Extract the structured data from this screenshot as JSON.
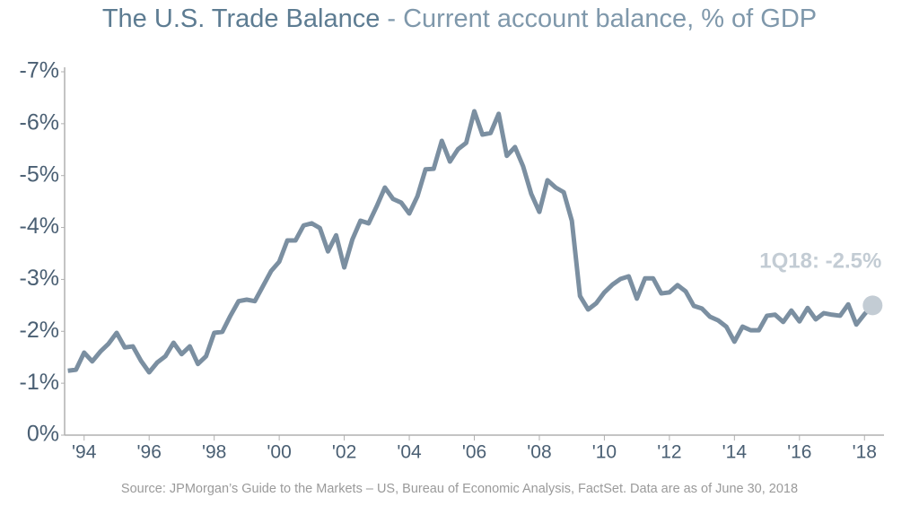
{
  "chart_data": {
    "type": "line",
    "title": "The U.S. Trade Balance",
    "subtitle": " - Current account balance, % of GDP",
    "source": "Source: JPMorgan’s Guide to the Markets – US, Bureau of Economic Analysis, FactSet. Data are as of June 30, 2018",
    "annotation": "1Q18: -2.5%",
    "color": "#7b8fa1",
    "highlight_color": "#c3ccd4",
    "x": [
      1993.5,
      1993.75,
      1994,
      1994.25,
      1994.5,
      1994.75,
      1995,
      1995.25,
      1995.5,
      1995.75,
      1996,
      1996.25,
      1996.5,
      1996.75,
      1997,
      1997.25,
      1997.5,
      1997.75,
      1998,
      1998.25,
      1998.5,
      1998.75,
      1999,
      1999.25,
      1999.5,
      1999.75,
      2000,
      2000.25,
      2000.5,
      2000.75,
      2001,
      2001.25,
      2001.5,
      2001.75,
      2002,
      2002.25,
      2002.5,
      2002.75,
      2003,
      2003.25,
      2003.5,
      2003.75,
      2004,
      2004.25,
      2004.5,
      2004.75,
      2005,
      2005.25,
      2005.5,
      2005.75,
      2006,
      2006.25,
      2006.5,
      2006.75,
      2007,
      2007.25,
      2007.5,
      2007.75,
      2008,
      2008.25,
      2008.5,
      2008.75,
      2009,
      2009.25,
      2009.5,
      2009.75,
      2010,
      2010.25,
      2010.5,
      2010.75,
      2011,
      2011.25,
      2011.5,
      2011.75,
      2012,
      2012.25,
      2012.5,
      2012.75,
      2013,
      2013.25,
      2013.5,
      2013.75,
      2014,
      2014.25,
      2014.5,
      2014.75,
      2015,
      2015.25,
      2015.5,
      2015.75,
      2016,
      2016.25,
      2016.5,
      2016.75,
      2017,
      2017.25,
      2017.5,
      2017.75,
      2018,
      2018.25
    ],
    "values": [
      -1.24,
      -1.26,
      -1.59,
      -1.42,
      -1.61,
      -1.76,
      -1.97,
      -1.69,
      -1.71,
      -1.43,
      -1.21,
      -1.4,
      -1.52,
      -1.78,
      -1.56,
      -1.71,
      -1.37,
      -1.52,
      -1.97,
      -1.99,
      -2.3,
      -2.58,
      -2.61,
      -2.58,
      -2.87,
      -3.16,
      -3.34,
      -3.75,
      -3.75,
      -4.04,
      -4.08,
      -3.99,
      -3.54,
      -3.85,
      -3.23,
      -3.77,
      -4.13,
      -4.08,
      -4.41,
      -4.77,
      -4.55,
      -4.48,
      -4.27,
      -4.6,
      -5.12,
      -5.13,
      -5.67,
      -5.27,
      -5.51,
      -5.63,
      -6.24,
      -5.79,
      -5.82,
      -6.19,
      -5.38,
      -5.55,
      -5.18,
      -4.65,
      -4.3,
      -4.91,
      -4.77,
      -4.68,
      -4.13,
      -2.68,
      -2.42,
      -2.54,
      -2.75,
      -2.9,
      -3.01,
      -3.06,
      -2.63,
      -3.02,
      -3.02,
      -2.73,
      -2.75,
      -2.89,
      -2.77,
      -2.49,
      -2.44,
      -2.28,
      -2.21,
      -2.09,
      -1.8,
      -2.09,
      -2.02,
      -2.02,
      -2.3,
      -2.32,
      -2.18,
      -2.4,
      -2.19,
      -2.45,
      -2.23,
      -2.35,
      -2.32,
      -2.3,
      -2.52,
      -2.13,
      -2.33,
      -2.5
    ],
    "xlim": [
      1993.4,
      2018.6
    ],
    "xticks": [
      {
        "value": 1994,
        "label": "'94"
      },
      {
        "value": 1996,
        "label": "'96"
      },
      {
        "value": 1998,
        "label": "'98"
      },
      {
        "value": 2000,
        "label": "'00"
      },
      {
        "value": 2002,
        "label": "'02"
      },
      {
        "value": 2004,
        "label": "'04"
      },
      {
        "value": 2006,
        "label": "'06"
      },
      {
        "value": 2008,
        "label": "'08"
      },
      {
        "value": 2010,
        "label": "'10"
      },
      {
        "value": 2012,
        "label": "'12"
      },
      {
        "value": 2014,
        "label": "'14"
      },
      {
        "value": 2016,
        "label": "'16"
      },
      {
        "value": 2018,
        "label": "'18"
      }
    ],
    "ylim": [
      0,
      -7
    ],
    "yticks": [
      {
        "value": 0,
        "label": "0%"
      },
      {
        "value": -1,
        "label": "-1%"
      },
      {
        "value": -2,
        "label": "-2%"
      },
      {
        "value": -3,
        "label": "-3%"
      },
      {
        "value": -4,
        "label": "-4%"
      },
      {
        "value": -5,
        "label": "-5%"
      },
      {
        "value": -6,
        "label": "-6%"
      },
      {
        "value": -7,
        "label": "-7%"
      }
    ],
    "grid": false
  }
}
